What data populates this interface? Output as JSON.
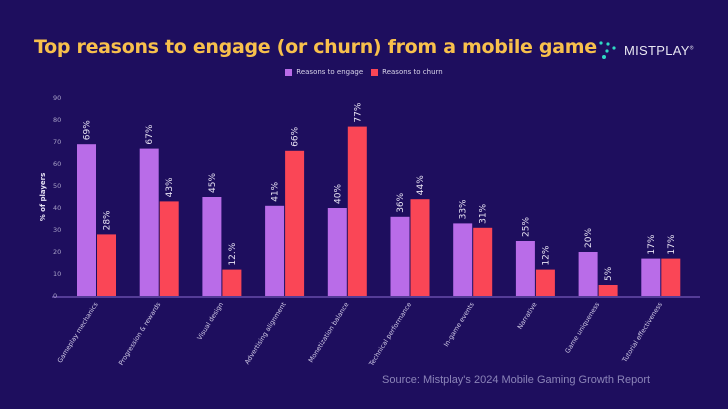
{
  "title": "Top reasons to engage (or churn) from a mobile game",
  "logo": {
    "text": "MISTPLAY",
    "mark": "®"
  },
  "source": "Source:  Mistplay's 2024 Mobile Gaming Growth Report",
  "colors": {
    "background": "#1e0e5e",
    "title": "#f8c04c",
    "engage": "#b96ce8",
    "churn": "#fa4656",
    "logo_dots": "#2fd9c4"
  },
  "chart_data": {
    "type": "bar",
    "title": "Top reasons to engage (or churn) from a mobile game",
    "xlabel": "",
    "ylabel": "% of players",
    "ylim": [
      0,
      90
    ],
    "yticks": [
      0,
      10,
      20,
      30,
      40,
      50,
      60,
      70,
      80,
      90
    ],
    "grid": false,
    "legend": "top-center",
    "categories": [
      "Gameplay mechanics",
      "Progression & rewards",
      "Visual design",
      "Advertising alignment",
      "Monetization balance",
      "Technical performance",
      "In-game events",
      "Narrative",
      "Game uniqueness",
      "Tutorial effectiveness"
    ],
    "series": [
      {
        "name": "Reasons to engage",
        "color": "#b96ce8",
        "values": [
          69,
          67,
          45,
          41,
          40,
          36,
          33,
          25,
          20,
          17
        ],
        "labels": [
          "69%",
          "67%",
          "45%",
          "41%",
          "40%",
          "36%",
          "33%",
          "25%",
          "20%",
          "17%"
        ]
      },
      {
        "name": "Reasons to churn",
        "color": "#fa4656",
        "values": [
          28,
          43,
          12,
          66,
          77,
          44,
          31,
          12,
          5,
          17
        ],
        "labels": [
          "28%",
          "43%",
          "12.%",
          "66%",
          "77%",
          "44%",
          "31%",
          "12%",
          "5%",
          "17%"
        ]
      }
    ]
  }
}
